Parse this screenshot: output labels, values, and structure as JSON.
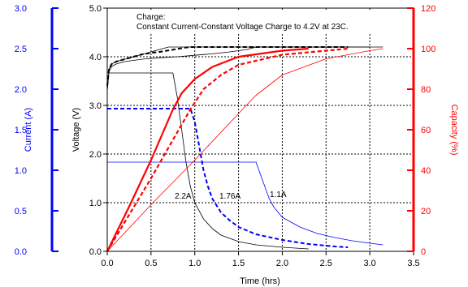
{
  "chart_data": {
    "type": "line",
    "annotation_line1": "Charge:",
    "annotation_line2": "Constant Current-Constant Voltage Charge to 4.2V at 23C.",
    "xlabel": "Time (hrs)",
    "ylabel_left_outer": "Current (A)",
    "ylabel_left_inner": "Voltage (V)",
    "ylabel_right": "Capacity (%)",
    "xlim": [
      0,
      3.5
    ],
    "ylim_voltage": [
      0,
      5
    ],
    "ylim_current": [
      0,
      3
    ],
    "ylim_capacity": [
      0,
      120
    ],
    "x_ticks": [
      "0.0",
      "0.5",
      "1.0",
      "1.5",
      "2.0",
      "2.5",
      "3.0",
      "3.5"
    ],
    "voltage_ticks": [
      "0.0",
      "1.0",
      "2.0",
      "3.0",
      "4.0",
      "5.0"
    ],
    "current_ticks": [
      "0.0",
      "0.5",
      "1.0",
      "1.5",
      "2.0",
      "2.5",
      "3.0"
    ],
    "capacity_ticks": [
      "0",
      "20",
      "40",
      "60",
      "80",
      "100",
      "120"
    ],
    "grid": true,
    "colors": {
      "voltage": "#000000",
      "current": "#0000ff",
      "capacity": "#ff0000"
    },
    "series_labels": [
      "2.2A",
      "1.76A",
      "1.1A"
    ],
    "series": [
      {
        "name": "2.2A",
        "quantity": "voltage",
        "axis": "voltage",
        "color": "#000000",
        "style": "solid",
        "width": 0.8,
        "x": [
          0,
          0.02,
          0.05,
          0.1,
          0.2,
          0.3,
          0.4,
          0.5,
          0.6,
          0.7,
          0.75,
          1.0,
          1.5,
          2.0,
          2.5,
          3.0
        ],
        "y": [
          3.3,
          3.75,
          3.85,
          3.9,
          3.95,
          4.0,
          4.05,
          4.1,
          4.15,
          4.2,
          4.2,
          4.2,
          4.2,
          4.2,
          4.2,
          4.2
        ]
      },
      {
        "name": "1.76A",
        "quantity": "voltage",
        "axis": "voltage",
        "color": "#000000",
        "style": "dashed",
        "width": 2,
        "x": [
          0,
          0.02,
          0.05,
          0.1,
          0.2,
          0.3,
          0.4,
          0.5,
          0.6,
          0.7,
          0.8,
          0.9,
          0.95,
          1.5,
          2.0,
          2.5,
          2.75
        ],
        "y": [
          3.4,
          3.75,
          3.85,
          3.9,
          3.95,
          4.0,
          4.05,
          4.08,
          4.1,
          4.13,
          4.16,
          4.19,
          4.2,
          4.2,
          4.2,
          4.2,
          4.2
        ]
      },
      {
        "name": "1.1A",
        "quantity": "voltage",
        "axis": "voltage",
        "color": "#000000",
        "style": "solid",
        "width": 0.8,
        "x": [
          0,
          0.02,
          0.05,
          0.1,
          0.2,
          0.4,
          0.6,
          0.8,
          1.0,
          1.2,
          1.4,
          1.6,
          1.7,
          2.0,
          2.5,
          3.0,
          3.15
        ],
        "y": [
          3.3,
          3.7,
          3.8,
          3.85,
          3.9,
          3.95,
          3.98,
          4.0,
          4.03,
          4.06,
          4.1,
          4.15,
          4.2,
          4.2,
          4.2,
          4.2,
          4.2
        ]
      },
      {
        "name": "2.2A",
        "quantity": "current",
        "axis": "current",
        "color": "#000000",
        "style": "solid",
        "width": 0.8,
        "x": [
          0,
          0.75,
          0.8,
          0.85,
          0.9,
          0.95,
          1.0,
          1.1,
          1.2,
          1.3,
          1.5,
          1.7,
          2.0,
          2.3
        ],
        "y": [
          2.2,
          2.2,
          1.9,
          1.5,
          1.1,
          0.8,
          0.6,
          0.4,
          0.28,
          0.2,
          0.12,
          0.08,
          0.05,
          0.03
        ]
      },
      {
        "name": "1.76A",
        "quantity": "current",
        "axis": "current",
        "color": "#0000ff",
        "style": "dashed",
        "width": 2,
        "x": [
          0,
          0.95,
          1.0,
          1.05,
          1.1,
          1.15,
          1.2,
          1.3,
          1.4,
          1.5,
          1.7,
          2.0,
          2.3,
          2.6,
          2.75
        ],
        "y": [
          1.76,
          1.76,
          1.6,
          1.3,
          1.0,
          0.8,
          0.65,
          0.48,
          0.38,
          0.3,
          0.21,
          0.14,
          0.09,
          0.06,
          0.05
        ]
      },
      {
        "name": "1.1A",
        "quantity": "current",
        "axis": "current",
        "color": "#0000ff",
        "style": "solid",
        "width": 0.8,
        "x": [
          0,
          1.7,
          1.75,
          1.8,
          1.85,
          1.9,
          2.0,
          2.2,
          2.4,
          2.6,
          2.8,
          3.0,
          3.15
        ],
        "y": [
          1.1,
          1.1,
          0.95,
          0.8,
          0.65,
          0.55,
          0.42,
          0.3,
          0.22,
          0.17,
          0.13,
          0.1,
          0.08
        ]
      },
      {
        "name": "2.2A",
        "quantity": "capacity",
        "axis": "capacity",
        "color": "#ff0000",
        "style": "solid",
        "width": 2.2,
        "x": [
          0,
          0.25,
          0.5,
          0.75,
          0.85,
          1.0,
          1.2,
          1.5,
          2.0,
          2.3
        ],
        "y": [
          0,
          22,
          45,
          70,
          78,
          85,
          91,
          96,
          99,
          100
        ]
      },
      {
        "name": "1.76A",
        "quantity": "capacity",
        "axis": "capacity",
        "color": "#ff0000",
        "style": "dashed",
        "width": 2.2,
        "x": [
          0,
          0.25,
          0.5,
          0.75,
          0.95,
          1.1,
          1.3,
          1.5,
          2.0,
          2.5,
          2.75
        ],
        "y": [
          0,
          18,
          36,
          55,
          70,
          80,
          87,
          92,
          97,
          99,
          100
        ]
      },
      {
        "name": "1.1A",
        "quantity": "capacity",
        "axis": "capacity",
        "color": "#ff0000",
        "style": "solid",
        "width": 0.8,
        "x": [
          0,
          0.5,
          1.0,
          1.5,
          1.7,
          2.0,
          2.5,
          3.0,
          3.15
        ],
        "y": [
          0,
          23,
          45,
          68,
          77,
          87,
          95,
          99,
          100
        ]
      }
    ]
  }
}
